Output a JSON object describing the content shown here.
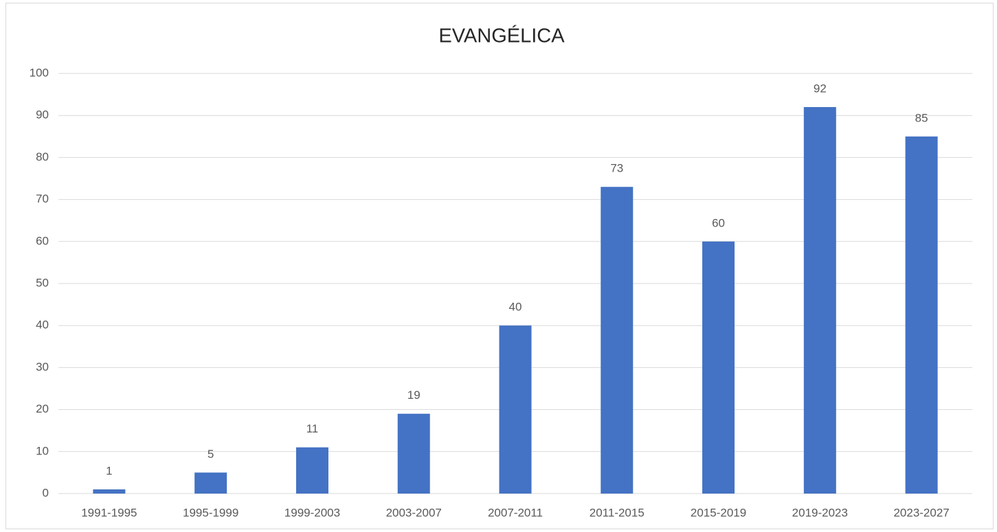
{
  "chart_data": {
    "type": "bar",
    "title": "EVANGÉLICA",
    "categories": [
      "1991-1995",
      "1995-1999",
      "1999-2003",
      "2003-2007",
      "2007-2011",
      "2011-2015",
      "2015-2019",
      "2019-2023",
      "2023-2027"
    ],
    "values": [
      1,
      5,
      11,
      19,
      40,
      73,
      60,
      92,
      85
    ],
    "color": "#4472c4",
    "ylim": [
      0,
      100
    ],
    "yticks": [
      0,
      10,
      20,
      30,
      40,
      50,
      60,
      70,
      80,
      90,
      100
    ],
    "grid": true,
    "data_labels": true
  }
}
